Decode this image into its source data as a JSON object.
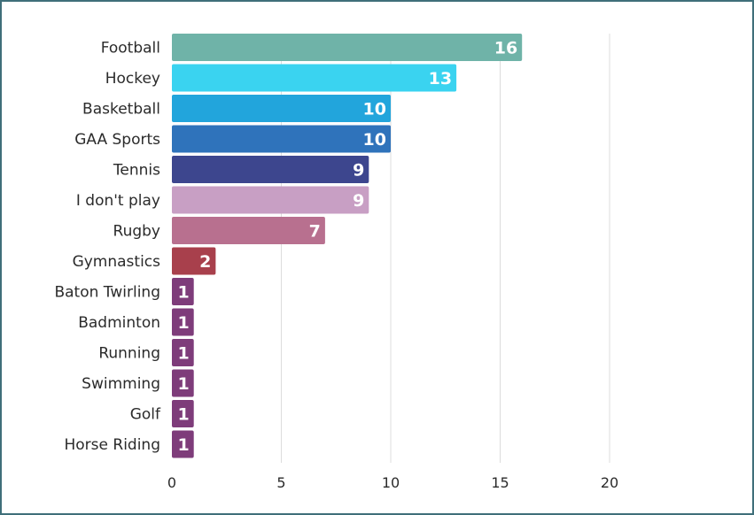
{
  "chart_data": {
    "type": "bar",
    "orientation": "horizontal",
    "categories": [
      "Football",
      "Hockey",
      "Basketball",
      "GAA Sports",
      "Tennis",
      "I don't play",
      "Rugby",
      "Gymnastics",
      "Baton Twirling",
      "Badminton",
      "Running",
      "Swimming",
      "Golf",
      "Horse Riding"
    ],
    "values": [
      16,
      13,
      10,
      10,
      9,
      9,
      7,
      2,
      1,
      1,
      1,
      1,
      1,
      1
    ],
    "colors": [
      "#6fb3a8",
      "#3ad3f0",
      "#22a5dc",
      "#2f73bb",
      "#3d468e",
      "#c89fc4",
      "#b8708f",
      "#a8404c",
      "#7e3c7a",
      "#7e3c7a",
      "#7e3c7a",
      "#7e3c7a",
      "#7e3c7a",
      "#7e3c7a"
    ],
    "xticks": [
      "0",
      "5",
      "10",
      "15",
      "20"
    ],
    "xlim": [
      0,
      25
    ],
    "title": "",
    "xlabel": "",
    "ylabel": "",
    "grid": "vertical",
    "legend": "none",
    "data_labels": "inside-end"
  }
}
